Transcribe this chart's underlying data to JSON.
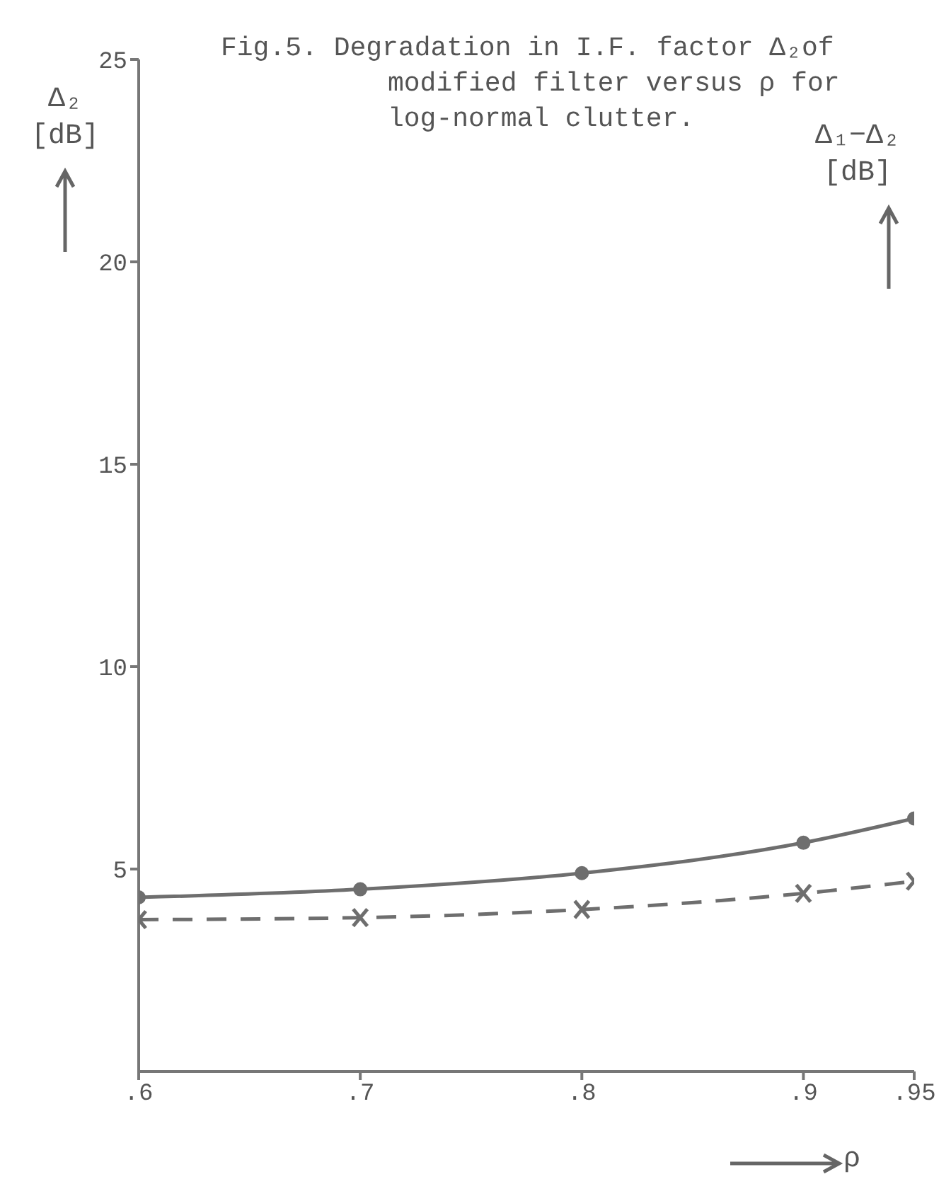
{
  "chart_data": {
    "type": "line",
    "title": "Fig.5. Degradation in I.F. factor Δ₂of modified filter versus ρ for log-normal clutter.",
    "xlabel": "ρ",
    "ylabel": "Δ₂ [dB]",
    "y2label": "Δ₁−Δ₂ [dB]",
    "x": [
      0.6,
      0.7,
      0.8,
      0.9,
      0.95
    ],
    "series": [
      {
        "color": "#6e6e6e",
        "values": [
          4.3,
          4.5,
          4.9,
          5.65,
          6.25
        ],
        "marker": "circle",
        "line_style": "solid"
      },
      {
        "color": "#6e6e6e",
        "values": [
          3.75,
          3.8,
          4.0,
          4.4,
          4.7
        ],
        "marker": "cross",
        "line_style": "dashed"
      }
    ],
    "xlim": [
      0.6,
      0.95
    ],
    "xticks": [
      {
        "value": 0.6,
        "label": ".6"
      },
      {
        "value": 0.7,
        "label": ".7"
      },
      {
        "value": 0.8,
        "label": ".8"
      },
      {
        "value": 0.9,
        "label": ".9"
      },
      {
        "value": 0.95,
        "label": ".95"
      }
    ],
    "ylim": [
      0,
      25
    ],
    "yticks": [
      5,
      10,
      15,
      20,
      25
    ]
  }
}
